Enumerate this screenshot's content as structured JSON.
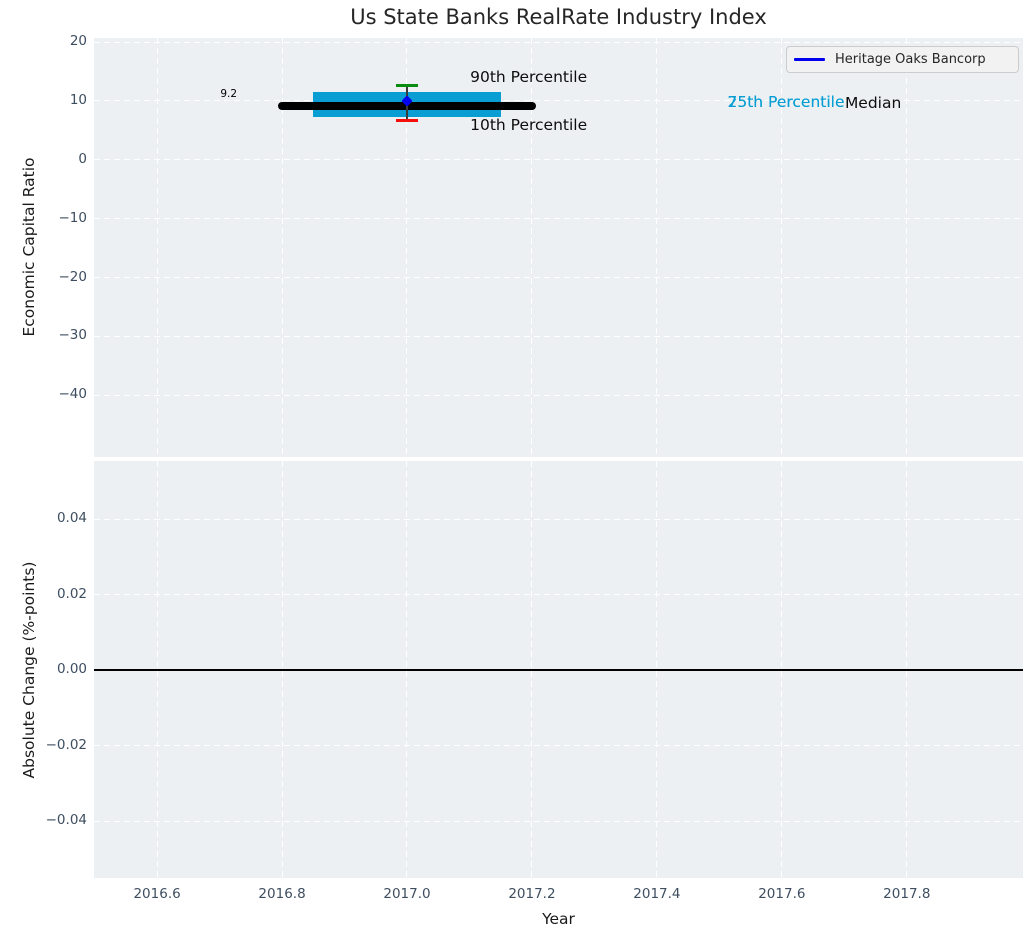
{
  "legend": {
    "label": "Heritage Oaks Bancorp",
    "line_color": "#0000f0"
  },
  "colors": {
    "axes_background": "#ecf0f2",
    "grid": "#ffffff",
    "tick_label": "#3e4e60",
    "box_fill": "#089ed4",
    "median_line": "#000000",
    "p90_cap": "#0a8c10",
    "p10_cap": "#f50f0a",
    "whisker_line": "#3a3a3a",
    "company_marker": "#0000f0",
    "zero_line": "#000000"
  },
  "chart_data": [
    {
      "type": "box-timeseries",
      "title": "Us State Banks RealRate Industry Index",
      "xlabel": "Year",
      "ylabel": "Economic Capital Ratio",
      "xlim": [
        2016.499,
        2017.986
      ],
      "ylim": [
        -50.5,
        20.7
      ],
      "grid": true,
      "legend_position": "upper right",
      "x_ticks": [
        {
          "v": 2016.6,
          "label": "2016.6"
        },
        {
          "v": 2016.8,
          "label": "2016.8"
        },
        {
          "v": 2017.0,
          "label": "2017.0"
        },
        {
          "v": 2017.2,
          "label": "2017.2"
        },
        {
          "v": 2017.4,
          "label": "2017.4"
        },
        {
          "v": 2017.6,
          "label": "2017.6"
        },
        {
          "v": 2017.8,
          "label": "2017.8"
        }
      ],
      "y_ticks": [
        {
          "v": 20,
          "label": "20"
        },
        {
          "v": 10,
          "label": "10"
        },
        {
          "v": 0,
          "label": "0"
        },
        {
          "v": -10,
          "label": "−10"
        },
        {
          "v": -20,
          "label": "−20"
        },
        {
          "v": -30,
          "label": "−30"
        },
        {
          "v": -40,
          "label": "−40"
        }
      ],
      "industry_box": {
        "year": 2017.0,
        "box_x_start": 2016.85,
        "box_x_end": 2017.15,
        "median_x_start": 2016.8,
        "median_x_end": 2017.2,
        "p10": 6.7,
        "p25": 7.2,
        "median": 9.2,
        "p75": 11.5,
        "p90": 12.6,
        "median_value_label": "9.2"
      },
      "series": [
        {
          "name": "Heritage Oaks Bancorp",
          "color": "#0000f0",
          "x": [
            2017.0
          ],
          "y": [
            10.0
          ]
        }
      ],
      "annotations": [
        {
          "text": "9.2",
          "x": 2016.728,
          "y": 11.2,
          "align": "right",
          "color": "#000000",
          "size": 10.5
        },
        {
          "text": "90th Percentile",
          "x": 2017.101,
          "y": 14.0,
          "align": "left",
          "color": "#0d0d0d",
          "size": 15.5
        },
        {
          "text": "10th Percentile",
          "x": 2017.101,
          "y": 6.0,
          "align": "left",
          "color": "#0d0d0d",
          "size": 15.5
        },
        {
          "text": "75th Percentile",
          "x": 2017.513,
          "y": 9.85,
          "align": "left",
          "color": "#089ed4",
          "size": 15.5
        },
        {
          "text": "25th Percentile",
          "x": 2017.513,
          "y": 9.85,
          "align": "left",
          "color": "#089ed4",
          "size": 15.5
        },
        {
          "text": "Median",
          "x": 2017.701,
          "y": 9.7,
          "align": "left",
          "color": "#0d0d0d",
          "size": 15.5
        }
      ]
    },
    {
      "type": "line",
      "xlabel": "Year",
      "ylabel": "Absolute Change (%-points)",
      "xlim": [
        2016.499,
        2017.986
      ],
      "ylim": [
        -0.0551,
        0.0554
      ],
      "grid": true,
      "y_ticks": [
        {
          "v": 0.04,
          "label": "0.04"
        },
        {
          "v": 0.02,
          "label": "0.02"
        },
        {
          "v": 0.0,
          "label": "0.00"
        },
        {
          "v": -0.02,
          "label": "−0.02"
        },
        {
          "v": -0.04,
          "label": "−0.04"
        }
      ],
      "zero_line": 0.0
    }
  ]
}
